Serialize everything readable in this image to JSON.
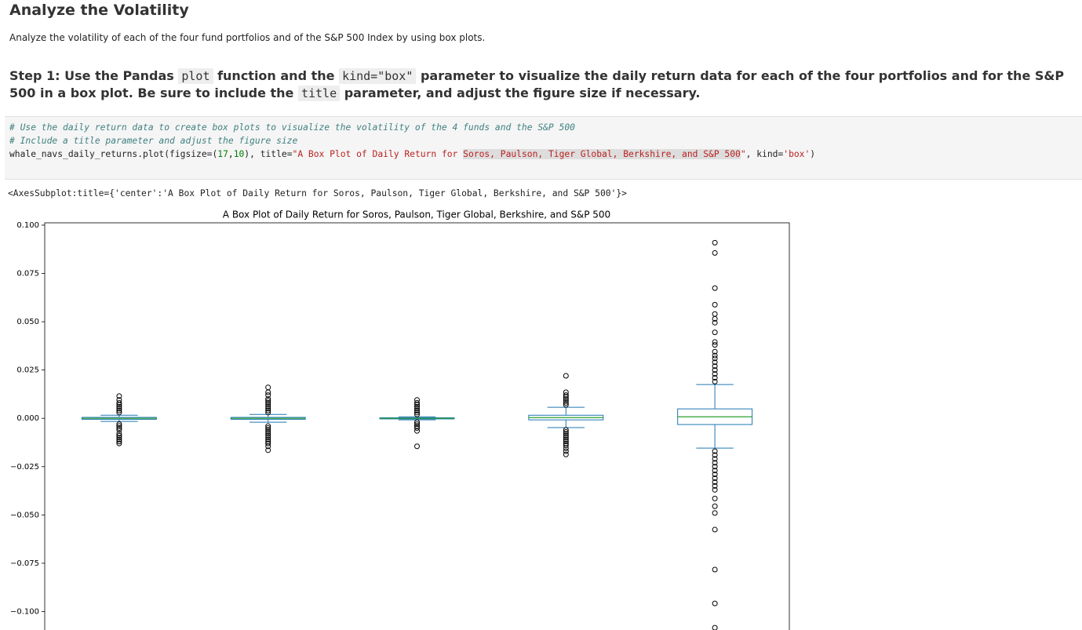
{
  "header": {
    "title": "Analyze the Volatility"
  },
  "intro": "Analyze the volatility of each of the four fund portfolios and of the S&P 500 Index by using box plots.",
  "step": {
    "parts": [
      "Step 1: Use the Pandas ",
      "plot",
      " function and the ",
      "kind=\"box\"",
      " parameter to visualize the daily return data for each of the four portfolios and for the S&P 500 in a box plot. Be sure to include the ",
      "title",
      " parameter, and adjust the figure size if necessary."
    ]
  },
  "code": {
    "lines": [
      [
        "# Use the daily return data to create box plots to visualize the volatility of the 4 funds and the S&P 500"
      ],
      [
        "# Include a title parameter and adjust the figure size"
      ],
      [
        "whale_navs_daily_returns.plot(figsize=(",
        "17",
        ",",
        "10",
        "), title=",
        "\"A Box Plot of Daily Return for ",
        "Soros, Paulson, Tiger Global, Berkshire, and S&P 500",
        "\"",
        ", kind=",
        "'box'",
        ")"
      ]
    ]
  },
  "output": "<AxesSubplot:title={'center':'A Box Plot of Daily Return for Soros, Paulson, Tiger Global, Berkshire, and S&P 500'}>",
  "chart_data": {
    "type": "box",
    "title": "A Box Plot of Daily Return for Soros, Paulson, Tiger Global, Berkshire, and S&P 500",
    "ylim": [
      -0.12,
      0.1012
    ],
    "yticks": [
      {
        "value": 0.1,
        "label": "0.100"
      },
      {
        "value": 0.075,
        "label": "0.075"
      },
      {
        "value": 0.05,
        "label": "0.050"
      },
      {
        "value": 0.025,
        "label": "0.025"
      },
      {
        "value": 0,
        "label": "0.000"
      },
      {
        "value": -0.025,
        "label": "−0.025"
      },
      {
        "value": -0.05,
        "label": "−0.050"
      },
      {
        "value": -0.075,
        "label": "−0.075"
      },
      {
        "value": -0.1,
        "label": "−0.100"
      }
    ],
    "box_color": "#1f77b4",
    "median_color": "#2ca02c",
    "boxes": [
      {
        "whislo": -0.0016,
        "q1": -0.0005,
        "median": 0,
        "q3": 0.0005,
        "whishi": 0.0016,
        "outliers": [
          0.0115,
          0.0095,
          0.008,
          0.007,
          0.006,
          0.005,
          0.004,
          0.003,
          -0.003,
          -0.004,
          -0.005,
          -0.006,
          -0.008,
          -0.009,
          -0.01,
          -0.011,
          -0.012,
          -0.013
        ]
      },
      {
        "whislo": -0.002,
        "q1": -0.0005,
        "median": 0,
        "q3": 0.0005,
        "whishi": 0.002,
        "outliers": [
          0.016,
          0.0135,
          0.012,
          0.01,
          0.009,
          0.008,
          0.007,
          0.006,
          0.005,
          0.004,
          0.003,
          -0.004,
          -0.005,
          -0.006,
          -0.007,
          -0.008,
          -0.009,
          -0.01,
          -0.011,
          -0.012,
          -0.013,
          -0.0145,
          -0.0165
        ]
      },
      {
        "whislo": -0.0008,
        "q1": -0.0003,
        "median": 0,
        "q3": 0.0003,
        "whishi": 0.0008,
        "outliers": [
          0.0095,
          0.008,
          0.007,
          0.006,
          0.005,
          0.004,
          0.003,
          0.002,
          -0.002,
          -0.003,
          -0.004,
          -0.005,
          -0.0065,
          -0.0145
        ]
      },
      {
        "whislo": -0.0048,
        "q1": -0.0008,
        "median": 0.0004,
        "q3": 0.0016,
        "whishi": 0.0057,
        "outliers": [
          0.022,
          0.0135,
          0.012,
          0.011,
          0.01,
          0.009,
          0.008,
          0.007,
          -0.006,
          -0.007,
          -0.008,
          -0.009,
          -0.01,
          -0.011,
          -0.012,
          -0.013,
          -0.014,
          -0.0155,
          -0.017,
          -0.0187
        ]
      },
      {
        "whislo": -0.0154,
        "q1": -0.0032,
        "median": 0.0008,
        "q3": 0.0049,
        "whishi": 0.0175,
        "outliers": [
          0.0909,
          0.0856,
          0.0674,
          0.0588,
          0.054,
          0.0515,
          0.0495,
          0.0445,
          0.0395,
          0.038,
          0.0345,
          0.0325,
          0.031,
          0.029,
          0.027,
          0.025,
          0.023,
          0.021,
          0.019,
          -0.017,
          -0.019,
          -0.021,
          -0.023,
          -0.025,
          -0.027,
          -0.029,
          -0.031,
          -0.033,
          -0.035,
          -0.037,
          -0.0415,
          -0.0455,
          -0.049,
          -0.0576,
          -0.0783,
          -0.0958,
          -0.1084
        ]
      }
    ]
  }
}
